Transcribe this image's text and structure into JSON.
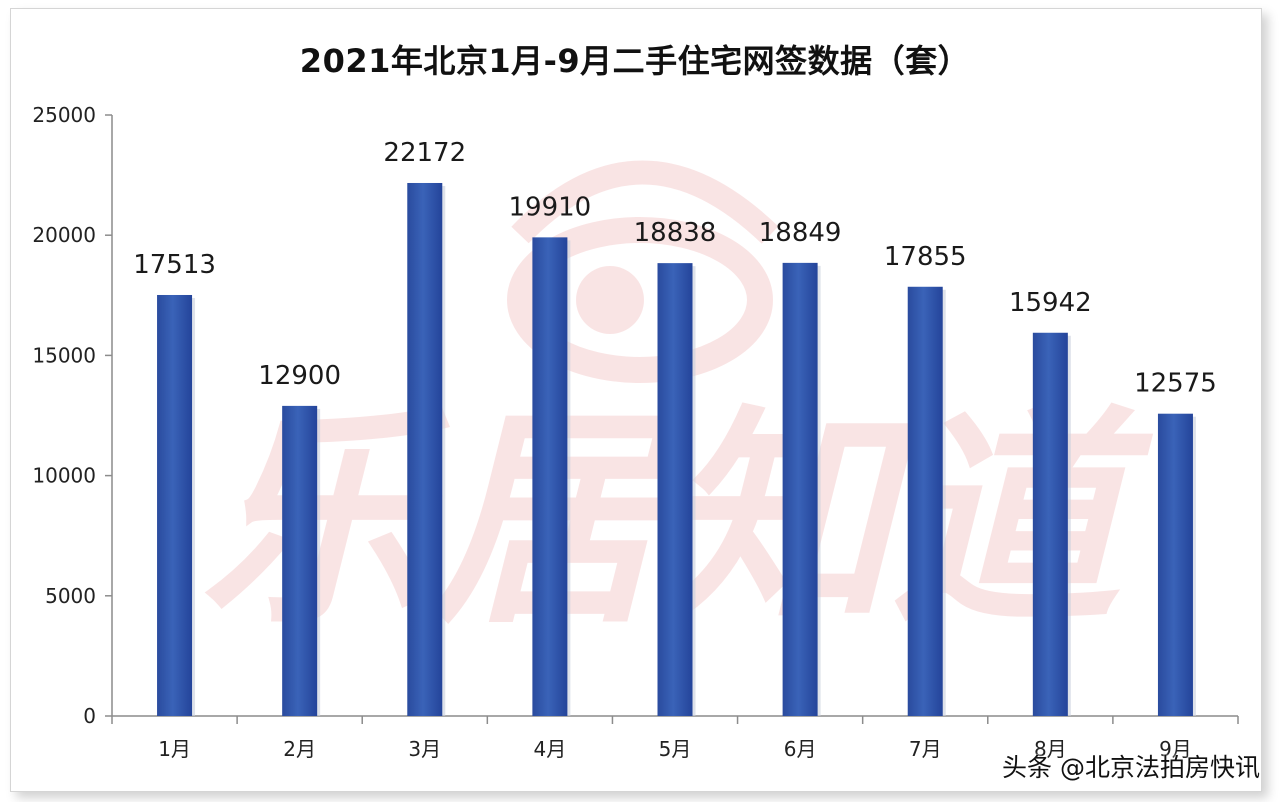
{
  "chart_data": {
    "type": "bar",
    "title": "2021年北京1月-9月二手住宅网签数据（套）",
    "categories": [
      "1月",
      "2月",
      "3月",
      "4月",
      "5月",
      "6月",
      "7月",
      "8月",
      "9月"
    ],
    "values": [
      17513,
      12900,
      22172,
      19910,
      18838,
      18849,
      17855,
      15942,
      12575
    ],
    "data_labels": [
      "17513",
      "12900",
      "22172",
      "19910",
      "18838",
      "18849",
      "17855",
      "15942",
      "12575"
    ],
    "y_ticks": [
      "0",
      "5000",
      "10000",
      "15000",
      "20000",
      "25000"
    ],
    "ylim": [
      0,
      25000
    ],
    "xlabel": "",
    "ylabel": "",
    "grid": false,
    "legend": "none",
    "bar_color": "#2c52a8",
    "bar_color_light": "#4a73c4"
  },
  "watermark": {
    "text": "乐居知道",
    "color": "#e8888a"
  },
  "footer": {
    "attribution": "头条 @北京法拍房快讯"
  }
}
